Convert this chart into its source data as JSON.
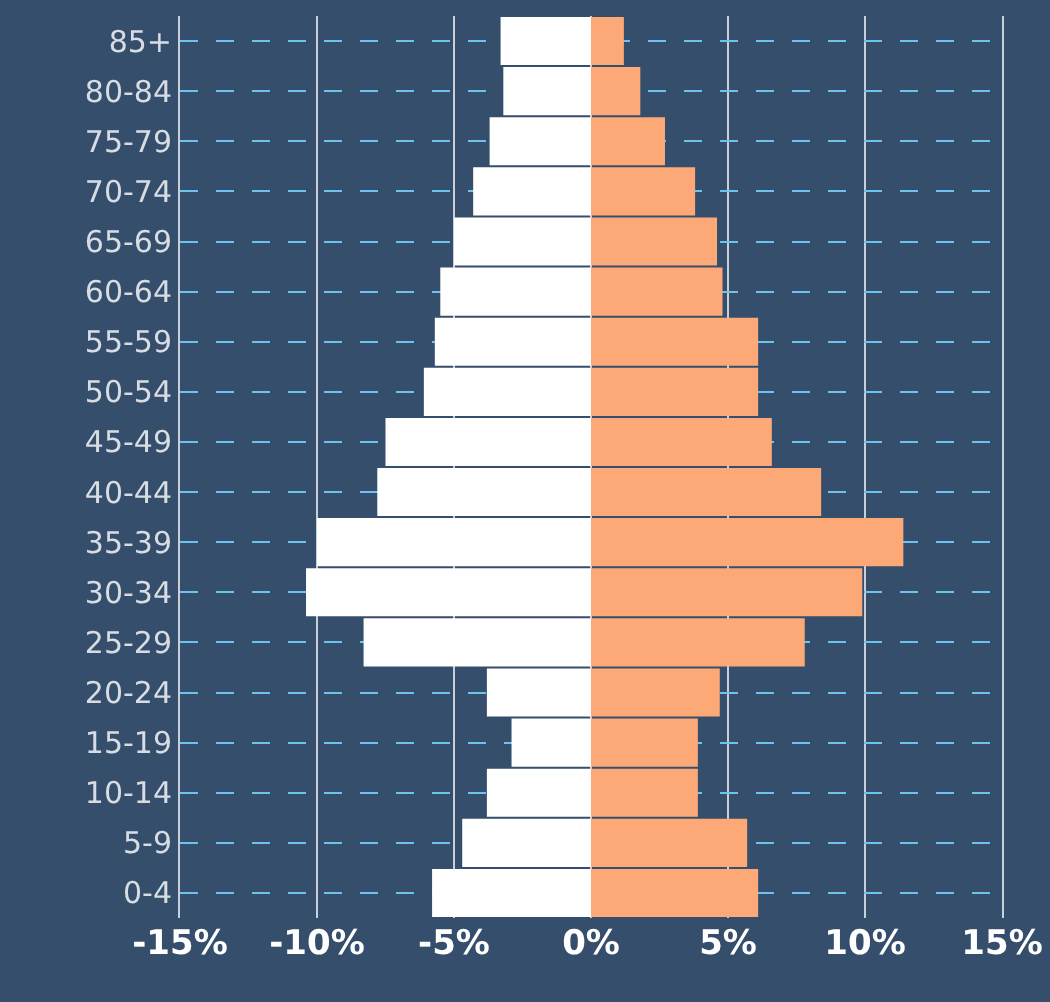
{
  "chart_data": {
    "type": "bar",
    "orientation": "horizontal",
    "categories": [
      "85+",
      "80-84",
      "75-79",
      "70-74",
      "65-69",
      "60-64",
      "55-59",
      "50-54",
      "45-49",
      "40-44",
      "35-39",
      "30-34",
      "25-29",
      "20-24",
      "15-19",
      "10-14",
      "5-9",
      "0-4"
    ],
    "series": [
      {
        "color": "#ffffff",
        "values": [
          -3.3,
          -3.2,
          -3.7,
          -4.3,
          -5.0,
          -5.5,
          -5.7,
          -6.1,
          -7.5,
          -7.8,
          -10.0,
          -10.4,
          -8.3,
          -3.8,
          -2.9,
          -3.8,
          -4.7,
          -5.8
        ]
      },
      {
        "color": "#fca877",
        "values": [
          1.2,
          1.8,
          2.7,
          3.8,
          4.6,
          4.8,
          6.1,
          6.1,
          6.6,
          8.4,
          11.4,
          9.9,
          7.8,
          4.7,
          3.9,
          3.9,
          5.7,
          6.1
        ]
      }
    ],
    "xlim": [
      -15,
      15
    ],
    "xticks": [
      {
        "value": -15,
        "label": "-15%"
      },
      {
        "value": -10,
        "label": "-10%"
      },
      {
        "value": -5,
        "label": "-5%"
      },
      {
        "value": 0,
        "label": "0%"
      },
      {
        "value": 5,
        "label": "5%"
      },
      {
        "value": 10,
        "label": "10%"
      },
      {
        "value": 15,
        "label": "15%"
      }
    ],
    "stacked": true,
    "grid": true
  }
}
